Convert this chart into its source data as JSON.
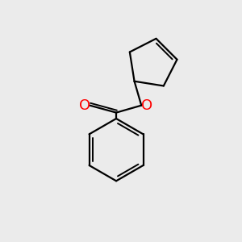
{
  "background_color": "#ebebeb",
  "bond_color": "#000000",
  "O_color": "#ff0000",
  "Cl_color": "#00bb00",
  "font_size": 12,
  "figsize": [
    3.0,
    3.0
  ],
  "dpi": 100,
  "lw": 1.6,
  "lw_inner": 1.4
}
